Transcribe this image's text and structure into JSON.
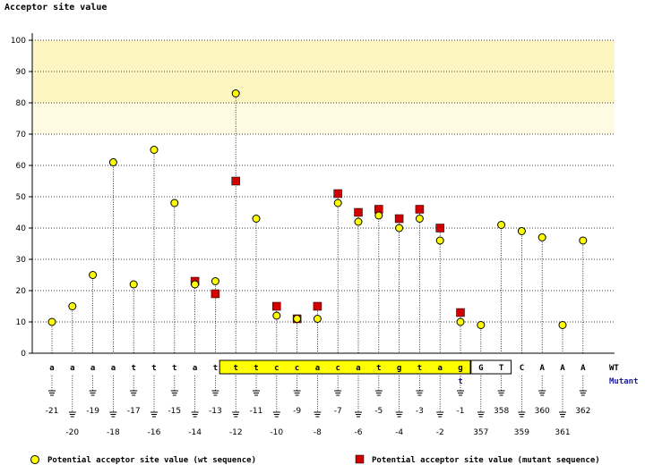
{
  "chart_data": {
    "type": "scatter",
    "title": "Acceptor site value",
    "ylabel": "Acceptor site value",
    "ylim": [
      0,
      100
    ],
    "yticks": [
      0,
      10,
      20,
      30,
      40,
      50,
      60,
      70,
      80,
      90,
      100
    ],
    "row_labels": {
      "wt": "WT",
      "mutant": "Mutant"
    },
    "positions": [
      {
        "base": "a",
        "num": "-21",
        "wt": 10
      },
      {
        "base": "a",
        "num": "-20",
        "wt": 15
      },
      {
        "base": "a",
        "num": "-19",
        "wt": 25
      },
      {
        "base": "a",
        "num": "-18",
        "wt": 61
      },
      {
        "base": "t",
        "num": "-17",
        "wt": 22
      },
      {
        "base": "t",
        "num": "-16",
        "wt": 65
      },
      {
        "base": "t",
        "num": "-15",
        "wt": 48
      },
      {
        "base": "a",
        "num": "-14",
        "wt": 22,
        "mut": 23
      },
      {
        "base": "t",
        "num": "-13",
        "wt": 23,
        "mut": 19
      },
      {
        "base": "t",
        "num": "-12",
        "wt": 83,
        "mut": 55,
        "box": "yellow"
      },
      {
        "base": "t",
        "num": "-11",
        "wt": 43,
        "box": "yellow"
      },
      {
        "base": "c",
        "num": "-10",
        "wt": 12,
        "mut": 15,
        "box": "yellow"
      },
      {
        "base": "c",
        "num": "-9",
        "wt": 11,
        "mut": 11,
        "box": "yellow"
      },
      {
        "base": "a",
        "num": "-8",
        "wt": 11,
        "mut": 15,
        "box": "yellow"
      },
      {
        "base": "c",
        "num": "-7",
        "wt": 48,
        "mut": 51,
        "box": "yellow"
      },
      {
        "base": "a",
        "num": "-6",
        "wt": 42,
        "mut": 45,
        "box": "yellow"
      },
      {
        "base": "t",
        "num": "-5",
        "wt": 44,
        "mut": 46,
        "box": "yellow"
      },
      {
        "base": "g",
        "num": "-4",
        "wt": 40,
        "mut": 43,
        "box": "yellow"
      },
      {
        "base": "t",
        "num": "-3",
        "wt": 43,
        "mut": 46,
        "box": "yellow"
      },
      {
        "base": "a",
        "num": "-2",
        "wt": 36,
        "mut": 40,
        "box": "yellow"
      },
      {
        "base": "g",
        "num": "-1",
        "wt": 10,
        "mut": 13,
        "mutant_base": "t",
        "box": "yellow"
      },
      {
        "base": "G",
        "num": "357",
        "wt": 9,
        "box": "white"
      },
      {
        "base": "T",
        "num": "358",
        "wt": 41,
        "box": "white"
      },
      {
        "base": "C",
        "num": "359",
        "wt": 39
      },
      {
        "base": "A",
        "num": "360",
        "wt": 37
      },
      {
        "base": "A",
        "num": "361",
        "wt": 9
      },
      {
        "base": "A",
        "num": "362",
        "wt": 36
      }
    ],
    "legend": [
      {
        "label": "Potential acceptor site value (wt sequence)",
        "marker": "circle",
        "color": "#ffff00"
      },
      {
        "label": "Potential acceptor site value (mutant sequence)",
        "marker": "square",
        "color": "#d00000"
      }
    ]
  }
}
